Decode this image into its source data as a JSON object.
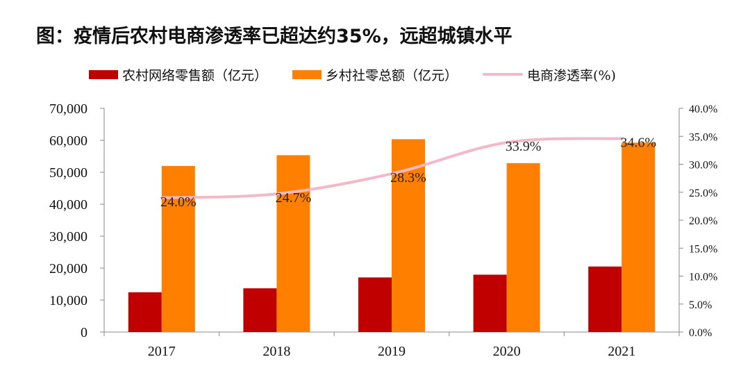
{
  "title": "图：疫情后农村电商渗透率已超达约35%，远超城镇水平",
  "legend": {
    "rural_online": "农村网络零售额（亿元）",
    "rural_total": "乡村社零总额（亿元）",
    "penetration": "电商渗透率(%)"
  },
  "colors": {
    "rural_online": "#c00000",
    "rural_total": "#ff8000",
    "penetration": "#f4b8c8"
  },
  "chart_data": {
    "type": "bar",
    "title": "图：疫情后农村电商渗透率已超达约35%，远超城镇水平",
    "categories": [
      "2017",
      "2018",
      "2019",
      "2020",
      "2021"
    ],
    "series": [
      {
        "name": "农村网络零售额（亿元）",
        "type": "bar",
        "axis": "left",
        "values": [
          12449,
          13679,
          17083,
          17945,
          20500
        ]
      },
      {
        "name": "乡村社零总额（亿元）",
        "type": "bar",
        "axis": "left",
        "values": [
          51972,
          55350,
          60350,
          52862,
          59265
        ]
      },
      {
        "name": "电商渗透率(%)",
        "type": "line",
        "axis": "right",
        "values": [
          24.0,
          24.7,
          28.3,
          33.9,
          34.6
        ]
      }
    ],
    "data_labels": [
      "24.0%",
      "24.7%",
      "28.3%",
      "33.9%",
      "34.6%"
    ],
    "left_axis": {
      "ylim": [
        0,
        70000
      ],
      "ticks": [
        "0",
        "10,000",
        "20,000",
        "30,000",
        "40,000",
        "50,000",
        "60,000",
        "70,000"
      ]
    },
    "right_axis": {
      "ylim": [
        0,
        40
      ],
      "ticks": [
        "0.0%",
        "5.0%",
        "10.0%",
        "15.0%",
        "20.0%",
        "25.0%",
        "30.0%",
        "35.0%",
        "40.0%"
      ]
    },
    "legend_position": "top",
    "grid": false
  }
}
